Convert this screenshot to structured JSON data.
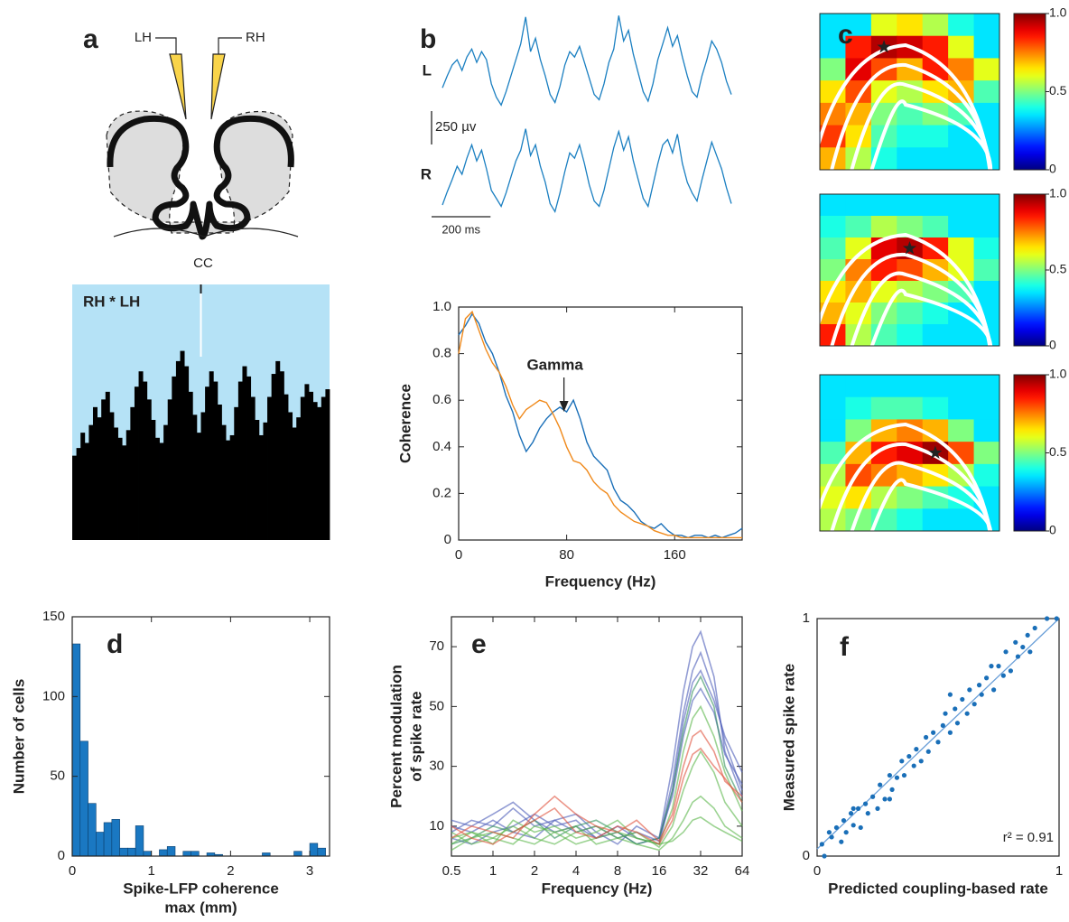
{
  "chart_data": [
    {
      "type": "diagram",
      "panel": "a",
      "labels": [
        "LH",
        "RH",
        "CC"
      ]
    },
    {
      "type": "area",
      "title": "RH * LH",
      "ylim": [
        0,
        1
      ],
      "color": "#000000",
      "background": "#b5e2f6",
      "values": [
        0.33,
        0.36,
        0.42,
        0.38,
        0.45,
        0.52,
        0.48,
        0.55,
        0.58,
        0.5,
        0.44,
        0.4,
        0.37,
        0.43,
        0.52,
        0.6,
        0.66,
        0.62,
        0.55,
        0.47,
        0.4,
        0.38,
        0.45,
        0.55,
        0.64,
        0.7,
        0.74,
        0.68,
        0.58,
        0.49,
        0.42,
        0.5,
        0.6,
        0.66,
        0.62,
        0.53,
        0.45,
        0.39,
        0.41,
        0.52,
        0.62,
        0.68,
        0.64,
        0.56,
        0.47,
        0.41,
        0.46,
        0.56,
        0.65,
        0.7,
        0.66,
        0.57,
        0.5,
        0.44,
        0.48,
        0.56,
        0.61,
        0.58,
        0.54,
        0.52,
        0.56,
        0.59
      ]
    },
    {
      "type": "trace",
      "panel": "b",
      "xlim": [
        0,
        980
      ],
      "scalebars": [
        {
          "value": 250,
          "label": "250 µv"
        },
        {
          "value": 200,
          "label": "200 ms"
        }
      ],
      "series": [
        {
          "name": "L",
          "color": "#1a7fc1",
          "values": [
            -150,
            -60,
            20,
            60,
            -20,
            80,
            140,
            40,
            120,
            60,
            -120,
            -220,
            -280,
            -180,
            -60,
            60,
            180,
            380,
            120,
            220,
            60,
            -60,
            -200,
            -260,
            -140,
            20,
            120,
            80,
            160,
            40,
            -80,
            -200,
            -240,
            -120,
            40,
            140,
            390,
            200,
            280,
            100,
            -40,
            -180,
            -250,
            -120,
            60,
            180,
            300,
            160,
            240,
            80,
            -60,
            -180,
            -220,
            -60,
            60,
            200,
            140,
            40,
            -100,
            -200
          ]
        },
        {
          "name": "R",
          "color": "#1a7fc1",
          "values": [
            -250,
            -150,
            -60,
            40,
            -20,
            100,
            200,
            80,
            160,
            20,
            -140,
            -200,
            -260,
            -160,
            -40,
            80,
            160,
            320,
            120,
            200,
            40,
            -80,
            -240,
            -300,
            -160,
            0,
            140,
            100,
            200,
            60,
            -100,
            -220,
            -260,
            -140,
            20,
            180,
            300,
            160,
            260,
            80,
            -60,
            -200,
            -260,
            -100,
            60,
            200,
            240,
            140,
            280,
            60,
            -80,
            -160,
            -220,
            -60,
            80,
            220,
            120,
            20,
            -120,
            -240
          ]
        }
      ]
    },
    {
      "type": "line",
      "xlabel": "Frequency (Hz)",
      "ylabel": [
        "Coherence"
      ],
      "annotation": "Gamma",
      "annotation_x": 78,
      "xlim": [
        0,
        210
      ],
      "xticks": [
        0,
        80,
        160
      ],
      "ylim": [
        0,
        1
      ],
      "yticks": [
        0,
        0.2,
        0.4,
        0.6,
        0.8,
        {
          "value": 1,
          "label": "1.0"
        }
      ],
      "x": [
        0,
        5,
        10,
        15,
        20,
        25,
        30,
        35,
        40,
        45,
        50,
        55,
        60,
        65,
        70,
        75,
        80,
        85,
        90,
        95,
        100,
        105,
        110,
        115,
        120,
        125,
        130,
        135,
        140,
        145,
        150,
        155,
        160,
        165,
        170,
        175,
        180,
        185,
        190,
        195,
        200,
        205,
        210
      ],
      "series": [
        {
          "color": "#1a6fb8",
          "values": [
            0.88,
            0.92,
            0.97,
            0.93,
            0.85,
            0.8,
            0.72,
            0.62,
            0.55,
            0.45,
            0.38,
            0.42,
            0.48,
            0.52,
            0.55,
            0.57,
            0.55,
            0.6,
            0.52,
            0.42,
            0.36,
            0.33,
            0.3,
            0.22,
            0.17,
            0.15,
            0.12,
            0.08,
            0.06,
            0.05,
            0.07,
            0.04,
            0.02,
            0.02,
            0.01,
            0.02,
            0.02,
            0.01,
            0.02,
            0.01,
            0.02,
            0.03,
            0.05
          ]
        },
        {
          "color": "#f08a1c",
          "values": [
            0.8,
            0.95,
            0.98,
            0.9,
            0.82,
            0.76,
            0.72,
            0.66,
            0.58,
            0.52,
            0.56,
            0.58,
            0.6,
            0.59,
            0.54,
            0.48,
            0.4,
            0.34,
            0.33,
            0.3,
            0.25,
            0.22,
            0.2,
            0.15,
            0.12,
            0.1,
            0.08,
            0.07,
            0.06,
            0.04,
            0.03,
            0.02,
            0.02,
            0.01,
            0.01,
            0.01,
            0.01,
            0.01,
            0.01,
            0.01,
            0.01,
            0.01,
            0.01
          ]
        }
      ]
    },
    {
      "type": "heatmap",
      "panel": "c",
      "clim": [
        0,
        1
      ],
      "cticks": [
        0,
        0.5,
        {
          "value": 1,
          "label": "1.0"
        }
      ],
      "grids": [
        [
          [
            0.35,
            0.35,
            0.6,
            0.65,
            0.55,
            0.4,
            0.35
          ],
          [
            0.35,
            0.85,
            0.95,
            0.92,
            0.85,
            0.6,
            0.35
          ],
          [
            0.5,
            0.9,
            0.8,
            0.7,
            0.85,
            0.75,
            0.6
          ],
          [
            0.65,
            0.8,
            0.6,
            0.55,
            0.65,
            0.7,
            0.45
          ],
          [
            0.75,
            0.7,
            0.5,
            0.45,
            0.5,
            0.45,
            0.35
          ],
          [
            0.82,
            0.65,
            0.45,
            0.4,
            0.4,
            0.35,
            0.35
          ],
          [
            0.7,
            0.55,
            0.4,
            0.35,
            0.35,
            0.35,
            0.35
          ]
        ],
        [
          [
            0.35,
            0.35,
            0.35,
            0.35,
            0.35,
            0.35,
            0.35
          ],
          [
            0.4,
            0.45,
            0.55,
            0.5,
            0.45,
            0.35,
            0.35
          ],
          [
            0.45,
            0.6,
            0.9,
            0.95,
            0.85,
            0.6,
            0.4
          ],
          [
            0.5,
            0.75,
            0.85,
            0.8,
            0.7,
            0.6,
            0.45
          ],
          [
            0.65,
            0.7,
            0.6,
            0.55,
            0.5,
            0.45,
            0.35
          ],
          [
            0.7,
            0.6,
            0.5,
            0.45,
            0.4,
            0.35,
            0.35
          ],
          [
            0.85,
            0.55,
            0.45,
            0.4,
            0.35,
            0.35,
            0.35
          ]
        ],
        [
          [
            0.35,
            0.35,
            0.35,
            0.35,
            0.35,
            0.35,
            0.35
          ],
          [
            0.35,
            0.4,
            0.45,
            0.45,
            0.4,
            0.35,
            0.35
          ],
          [
            0.35,
            0.5,
            0.7,
            0.75,
            0.7,
            0.5,
            0.35
          ],
          [
            0.45,
            0.7,
            0.85,
            0.9,
            0.97,
            0.8,
            0.5
          ],
          [
            0.55,
            0.8,
            0.75,
            0.7,
            0.65,
            0.55,
            0.4
          ],
          [
            0.6,
            0.65,
            0.55,
            0.5,
            0.45,
            0.4,
            0.35
          ],
          [
            0.55,
            0.5,
            0.45,
            0.4,
            0.35,
            0.35,
            0.35
          ]
        ]
      ]
    },
    {
      "type": "histogram",
      "panel": "d",
      "color": "#1a78c2",
      "ylabel": [
        "Number of cells"
      ],
      "xlabel": [
        "Spike-LFP coherence",
        "max (mm)"
      ],
      "xlim": [
        0,
        3.25
      ],
      "xticks": [
        0,
        1,
        2,
        3
      ],
      "ylim": [
        0,
        150
      ],
      "yticks": [
        0,
        50,
        100,
        150
      ],
      "bins": [
        0,
        0.1,
        0.2,
        0.3,
        0.4,
        0.5,
        0.6,
        0.7,
        0.8,
        0.9,
        1,
        1.1,
        1.2,
        1.3,
        1.4,
        1.5,
        1.6,
        1.7,
        1.8,
        1.9,
        2,
        2.1,
        2.2,
        2.3,
        2.4,
        2.5,
        2.6,
        2.7,
        2.8,
        2.9,
        3,
        3.1,
        3.2
      ],
      "values": [
        133,
        72,
        33,
        15,
        21,
        23,
        5,
        5,
        19,
        3,
        0,
        4,
        6,
        0,
        3,
        3,
        0,
        2,
        1,
        0,
        0,
        0,
        0,
        0,
        2,
        0,
        0,
        0,
        3,
        0,
        8,
        5
      ]
    },
    {
      "type": "line",
      "panel": "e",
      "log_x": true,
      "xlabel": "Frequency (Hz)",
      "ylabel": [
        "Percent modulation",
        "of spike rate"
      ],
      "xlim": [
        0.5,
        64
      ],
      "xticks": [
        0.5,
        1,
        2,
        4,
        8,
        16,
        32,
        64
      ],
      "ylim": [
        0,
        80
      ],
      "yticks": [
        10,
        30,
        50,
        70
      ],
      "x": [
        0.5,
        0.7,
        1,
        1.4,
        2,
        2.8,
        4,
        5.6,
        8,
        11,
        16,
        20,
        24,
        28,
        32,
        40,
        48,
        64
      ],
      "series": [
        {
          "color": "#4a5ab8",
          "values": [
            12,
            10,
            14,
            18,
            12,
            8,
            10,
            6,
            8,
            4,
            6,
            30,
            55,
            70,
            75,
            60,
            35,
            20
          ]
        },
        {
          "color": "#4a5ab8",
          "values": [
            8,
            12,
            10,
            16,
            10,
            12,
            8,
            10,
            6,
            8,
            5,
            25,
            48,
            62,
            68,
            55,
            38,
            22
          ]
        },
        {
          "color": "#4a5ab8",
          "values": [
            6,
            4,
            8,
            10,
            14,
            10,
            12,
            6,
            10,
            6,
            4,
            22,
            45,
            58,
            62,
            52,
            40,
            28
          ]
        },
        {
          "color": "#4a5ab8",
          "values": [
            10,
            8,
            12,
            8,
            6,
            12,
            14,
            8,
            4,
            10,
            6,
            20,
            40,
            52,
            56,
            48,
            34,
            24
          ]
        },
        {
          "color": "#2f8f5a",
          "values": [
            4,
            6,
            10,
            8,
            12,
            6,
            10,
            12,
            8,
            4,
            6,
            22,
            42,
            55,
            60,
            50,
            30,
            18
          ]
        },
        {
          "color": "#5ab54a",
          "values": [
            6,
            8,
            4,
            12,
            8,
            10,
            6,
            8,
            12,
            6,
            4,
            16,
            35,
            46,
            50,
            40,
            28,
            15
          ]
        },
        {
          "color": "#5ab54a",
          "values": [
            2,
            6,
            8,
            6,
            4,
            8,
            10,
            4,
            6,
            8,
            3,
            10,
            22,
            30,
            35,
            28,
            18,
            10
          ]
        },
        {
          "color": "#5ab54a",
          "values": [
            8,
            4,
            6,
            10,
            6,
            4,
            8,
            10,
            6,
            4,
            2,
            6,
            12,
            18,
            20,
            16,
            10,
            6
          ]
        },
        {
          "color": "#5ab54a",
          "values": [
            4,
            8,
            6,
            4,
            10,
            8,
            4,
            6,
            8,
            6,
            4,
            5,
            8,
            12,
            13,
            10,
            8,
            5
          ]
        },
        {
          "color": "#e0503a",
          "values": [
            6,
            10,
            8,
            6,
            14,
            20,
            14,
            10,
            8,
            12,
            5,
            14,
            30,
            40,
            42,
            35,
            25,
            20
          ]
        },
        {
          "color": "#e0503a",
          "values": [
            10,
            6,
            4,
            8,
            12,
            16,
            8,
            6,
            10,
            8,
            4,
            12,
            26,
            34,
            36,
            30,
            26,
            18
          ]
        }
      ]
    },
    {
      "type": "scatter",
      "panel": "f",
      "color": "#1a6fb8",
      "xlabel": "Predicted coupling-based rate",
      "ylabel": [
        "Measured spike rate"
      ],
      "annotation": "r² = 0.91",
      "xlim": [
        0,
        1
      ],
      "xticks": [
        0,
        1
      ],
      "ylim": [
        0,
        1
      ],
      "yticks": [
        0,
        1
      ],
      "fit": {
        "x": [
          0,
          1
        ],
        "values": [
          0.03,
          1
        ]
      },
      "x": [
        0.02,
        0.03,
        0.05,
        0.06,
        0.08,
        0.1,
        0.11,
        0.12,
        0.14,
        0.15,
        0.17,
        0.18,
        0.2,
        0.21,
        0.23,
        0.25,
        0.26,
        0.28,
        0.3,
        0.31,
        0.33,
        0.35,
        0.36,
        0.38,
        0.4,
        0.41,
        0.43,
        0.45,
        0.46,
        0.48,
        0.5,
        0.52,
        0.53,
        0.55,
        0.57,
        0.58,
        0.6,
        0.62,
        0.63,
        0.65,
        0.67,
        0.68,
        0.7,
        0.72,
        0.73,
        0.75,
        0.77,
        0.78,
        0.8,
        0.82,
        0.83,
        0.85,
        0.87,
        0.88,
        0.9,
        0.95,
        0.99,
        0.55,
        0.3,
        0.15
      ],
      "values": [
        0.05,
        0,
        0.1,
        0.08,
        0.12,
        0.06,
        0.15,
        0.1,
        0.18,
        0.13,
        0.2,
        0.12,
        0.22,
        0.18,
        0.25,
        0.2,
        0.3,
        0.24,
        0.34,
        0.28,
        0.33,
        0.4,
        0.34,
        0.42,
        0.38,
        0.45,
        0.4,
        0.5,
        0.44,
        0.52,
        0.48,
        0.55,
        0.6,
        0.52,
        0.62,
        0.56,
        0.66,
        0.6,
        0.7,
        0.64,
        0.72,
        0.68,
        0.75,
        0.8,
        0.7,
        0.8,
        0.76,
        0.86,
        0.78,
        0.9,
        0.84,
        0.88,
        0.93,
        0.86,
        0.96,
        1,
        1,
        0.68,
        0.24,
        0.2
      ]
    }
  ]
}
